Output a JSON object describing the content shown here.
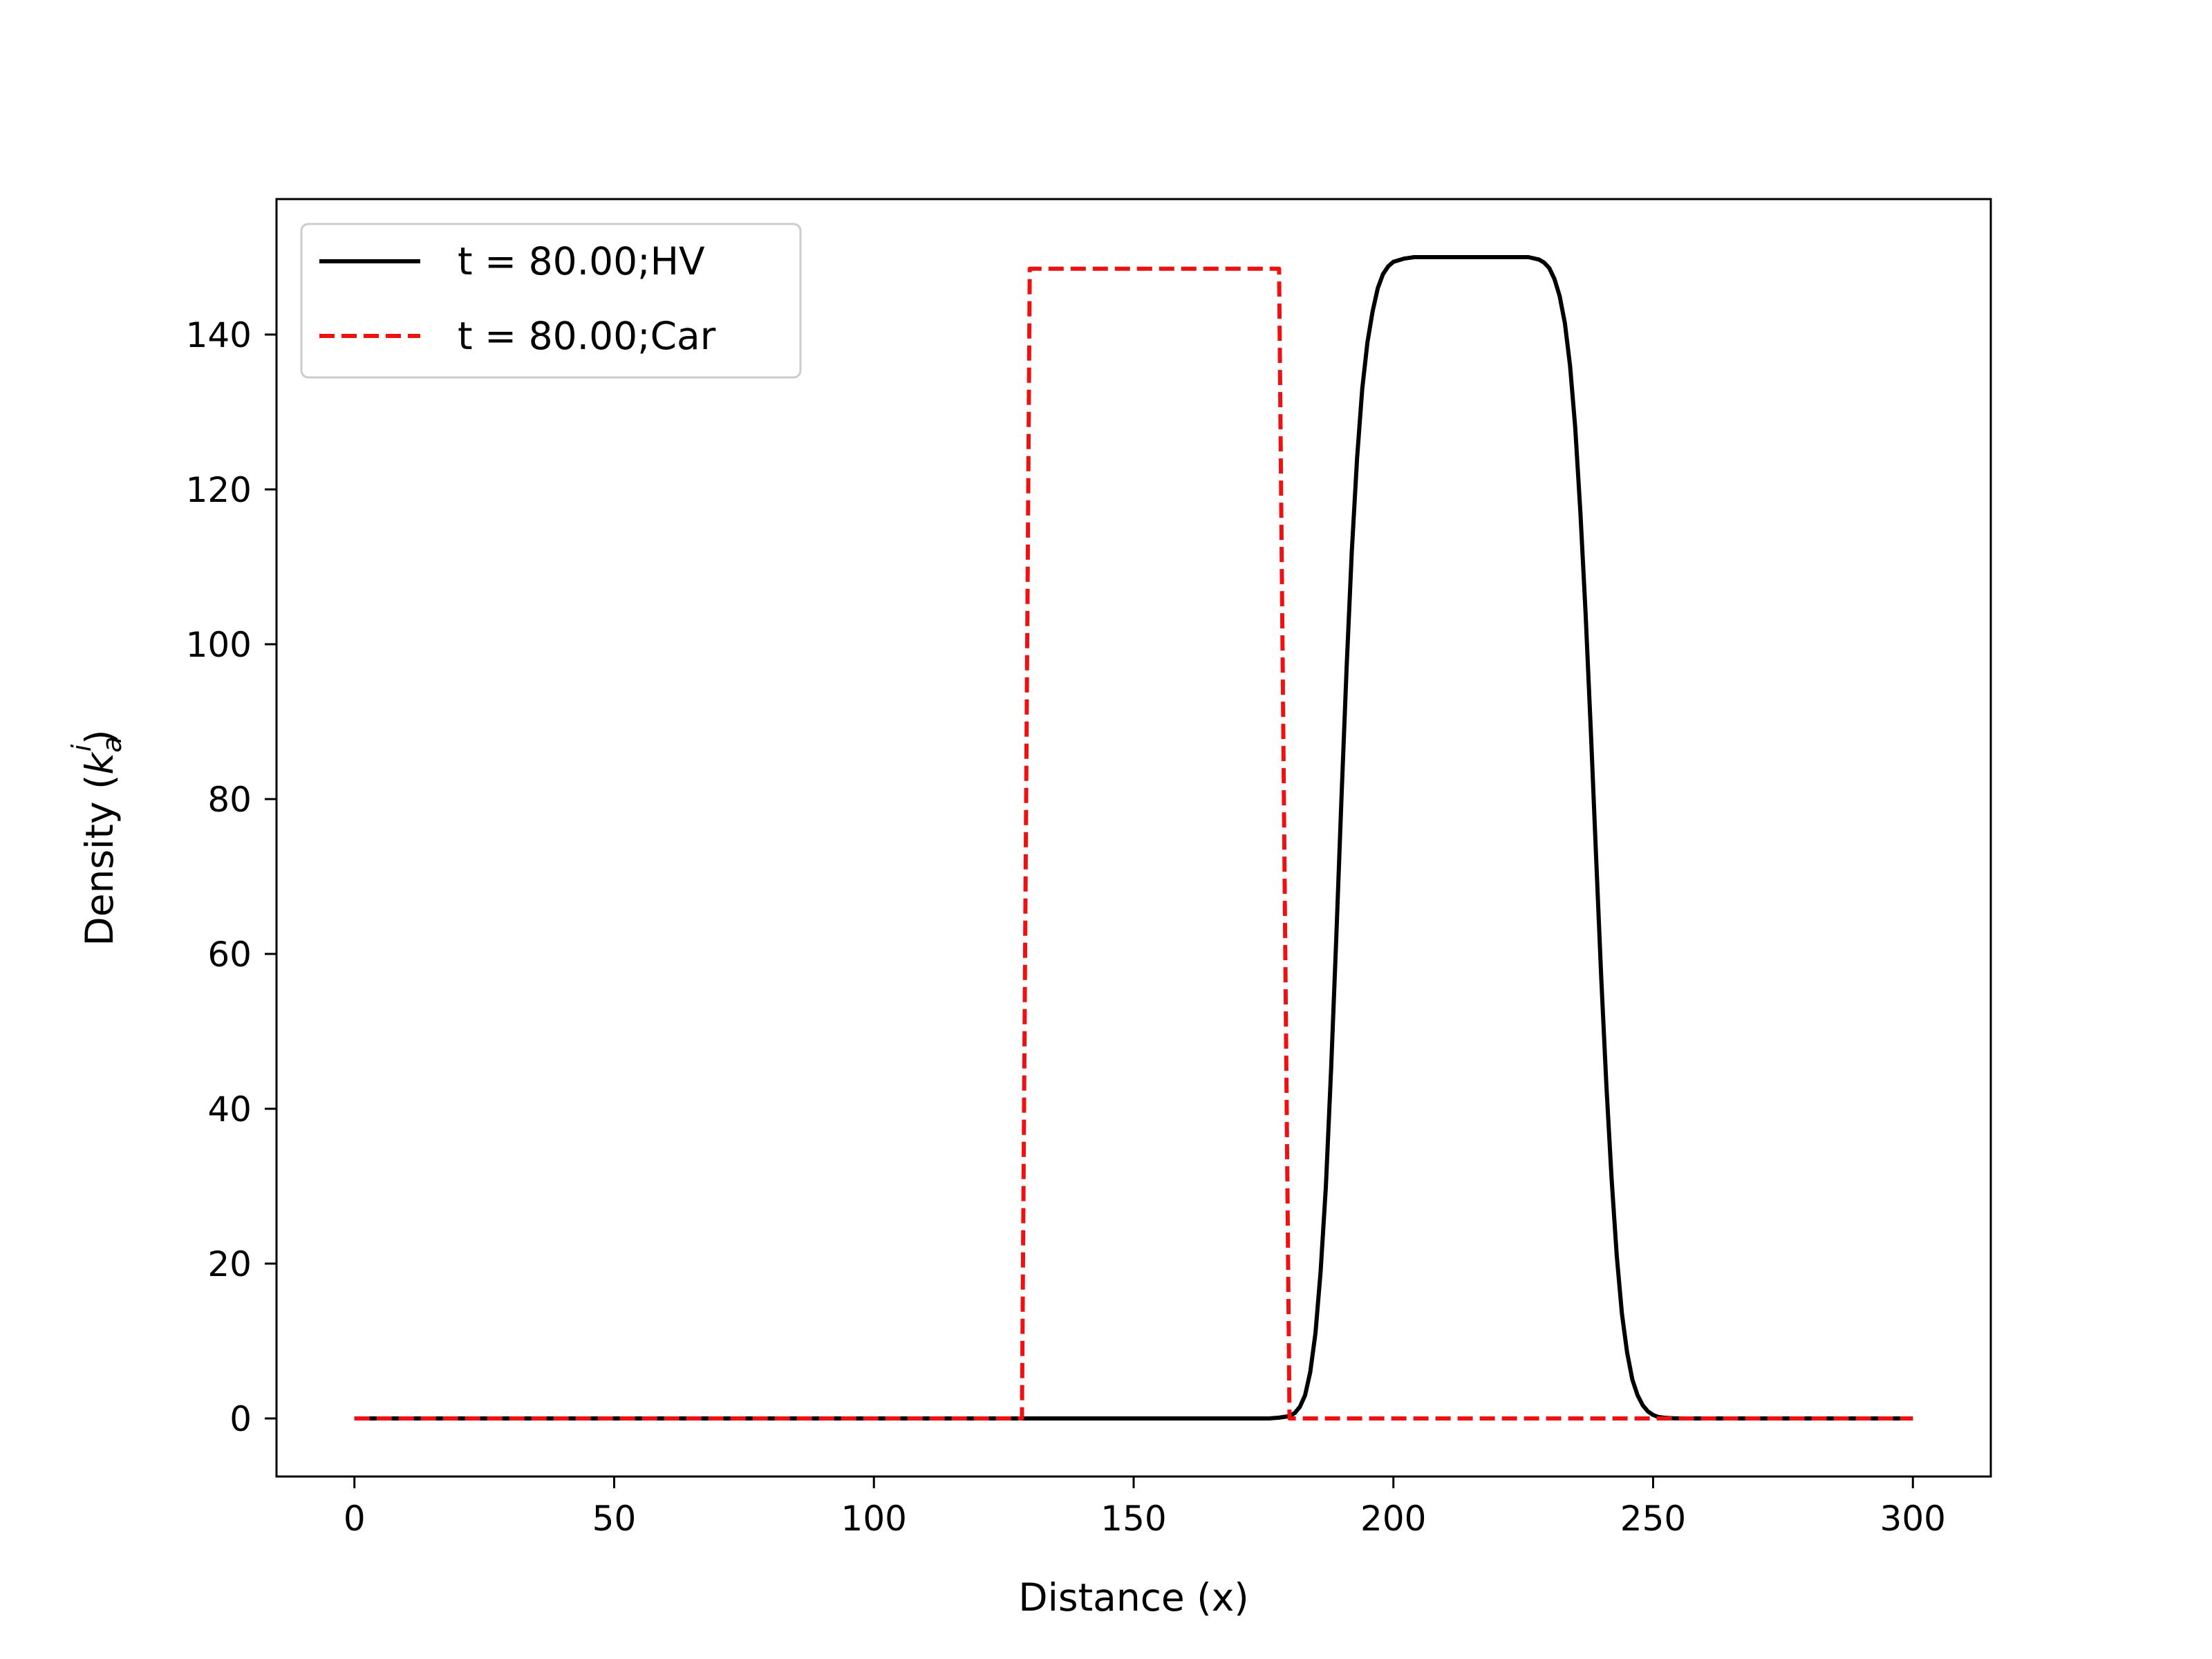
{
  "chart_data": {
    "type": "line",
    "title": "",
    "xlabel": "Distance (x)",
    "ylabel_main": "Density (",
    "ylabel_symbol": "k",
    "ylabel_sup": "i",
    "ylabel_sub": "a",
    "ylabel_close": ")",
    "xlim": [
      -15,
      315
    ],
    "ylim": [
      -7.5,
      157.5
    ],
    "xticks": [
      0,
      50,
      100,
      150,
      200,
      250,
      300
    ],
    "yticks": [
      0,
      20,
      40,
      60,
      80,
      100,
      120,
      140
    ],
    "grid": false,
    "legend_position": "top-left",
    "series": [
      {
        "name": "t = 80.00;HV",
        "color": "#000000",
        "style": "solid",
        "x": [
          0,
          100,
          176,
          178,
          180,
          181,
          182,
          183,
          184,
          185,
          186,
          187,
          188,
          189,
          190,
          191,
          192,
          193,
          194,
          195,
          196,
          197,
          198,
          199,
          200,
          202,
          204,
          206,
          210,
          220,
          226,
          228,
          229,
          230,
          231,
          232,
          233,
          234,
          235,
          236,
          237,
          238,
          239,
          240,
          241,
          242,
          243,
          244,
          245,
          246,
          247,
          248,
          249,
          250,
          251,
          252,
          253,
          254,
          256,
          260,
          280,
          300
        ],
        "y": [
          0,
          0,
          0,
          0.1,
          0.3,
          0.7,
          1.5,
          3,
          6,
          11,
          19,
          30,
          45,
          62,
          80,
          97,
          112,
          124,
          133,
          139,
          143,
          146,
          147.8,
          148.8,
          149.4,
          149.8,
          150,
          150,
          150,
          150,
          150,
          149.7,
          149.3,
          148.6,
          147.2,
          145,
          141.5,
          136,
          128,
          117,
          104,
          89,
          73,
          57,
          43,
          31,
          21,
          13.5,
          8.5,
          5,
          3,
          1.7,
          0.9,
          0.45,
          0.2,
          0.1,
          0.05,
          0.02,
          0,
          0,
          0,
          0
        ]
      },
      {
        "name": "t = 80.00;Car",
        "color": "#ee1111",
        "style": "dashed",
        "x": [
          0,
          128.5,
          130,
          178,
          180,
          300
        ],
        "y": [
          0,
          0,
          148.5,
          148.5,
          0,
          0
        ]
      }
    ]
  }
}
